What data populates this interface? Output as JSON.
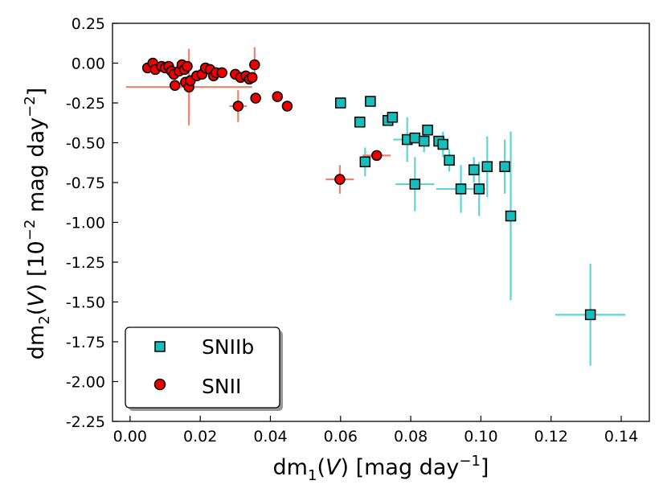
{
  "chart_data": {
    "type": "scatter",
    "title": "",
    "xlabel": {
      "pre": "dm",
      "sub": "1",
      "mid": "(",
      "var": "V",
      "post": ") [mag day",
      "sup": "−1",
      "end": "]"
    },
    "ylabel": {
      "pre": "dm",
      "sub": "2",
      "mid": "(",
      "var": "V",
      "post": ") [10",
      "sup1": "−2",
      "post2": " mag day",
      "sup2": "−2",
      "end": "]"
    },
    "xlim": [
      -0.005,
      0.148
    ],
    "ylim": [
      -2.25,
      0.25
    ],
    "xticks": [
      0.0,
      0.02,
      0.04,
      0.06,
      0.08,
      0.1,
      0.12,
      0.14
    ],
    "xtick_labels": [
      "0.00",
      "0.02",
      "0.04",
      "0.06",
      "0.08",
      "0.10",
      "0.12",
      "0.14"
    ],
    "yticks": [
      0.25,
      0.0,
      -0.25,
      -0.5,
      -0.75,
      -1.0,
      -1.25,
      -1.5,
      -1.75,
      -2.0,
      -2.25
    ],
    "ytick_labels": [
      "0.25",
      "0.00",
      "-0.25",
      "-0.50",
      "-0.75",
      "-1.00",
      "-1.25",
      "-1.50",
      "-1.75",
      "-2.00",
      "-2.25"
    ],
    "legend_position": "bottom-left",
    "series": [
      {
        "name": "SNIIb",
        "marker": "square",
        "color": "#17bebb",
        "error_color": "#5dd5d5",
        "points": [
          {
            "x": 0.06,
            "y": -0.25,
            "xerr": 0.0,
            "yerr": 0.0
          },
          {
            "x": 0.0655,
            "y": -0.37,
            "xerr": 0.0,
            "yerr": 0.0
          },
          {
            "x": 0.0685,
            "y": -0.24,
            "xerr": 0.0,
            "yerr": 0.0
          },
          {
            "x": 0.0735,
            "y": -0.36,
            "xerr": 0.0,
            "yerr": 0.0
          },
          {
            "x": 0.0748,
            "y": -0.34,
            "xerr": 0.0,
            "yerr": 0.0
          },
          {
            "x": 0.067,
            "y": -0.62,
            "xerr": 0.0,
            "yerr": 0.09
          },
          {
            "x": 0.079,
            "y": -0.48,
            "xerr": 0.004,
            "yerr": 0.14
          },
          {
            "x": 0.0812,
            "y": -0.47,
            "xerr": 0.0,
            "yerr": 0.0
          },
          {
            "x": 0.0838,
            "y": -0.49,
            "xerr": 0.0,
            "yerr": 0.07
          },
          {
            "x": 0.0848,
            "y": -0.42,
            "xerr": 0.0,
            "yerr": 0.0
          },
          {
            "x": 0.088,
            "y": -0.49,
            "xerr": 0.0,
            "yerr": 0.0
          },
          {
            "x": 0.0892,
            "y": -0.51,
            "xerr": 0.0,
            "yerr": 0.08
          },
          {
            "x": 0.0812,
            "y": -0.76,
            "xerr": 0.0055,
            "yerr": 0.17
          },
          {
            "x": 0.091,
            "y": -0.61,
            "xerr": 0.0,
            "yerr": 0.07
          },
          {
            "x": 0.0943,
            "y": -0.79,
            "xerr": 0.007,
            "yerr": 0.15
          },
          {
            "x": 0.098,
            "y": -0.67,
            "xerr": 0.0,
            "yerr": 0.08
          },
          {
            "x": 0.0995,
            "y": -0.79,
            "xerr": 0.0,
            "yerr": 0.17
          },
          {
            "x": 0.1018,
            "y": -0.65,
            "xerr": 0.0,
            "yerr": 0.19
          },
          {
            "x": 0.1068,
            "y": -0.65,
            "xerr": 0.0,
            "yerr": 0.17
          },
          {
            "x": 0.1085,
            "y": -0.96,
            "xerr": 0.0,
            "yerr": 0.53
          },
          {
            "x": 0.1312,
            "y": -1.58,
            "xerr": 0.01,
            "yerr": 0.32
          }
        ]
      },
      {
        "name": "SNII",
        "marker": "circle",
        "color": "#ee0000",
        "error_color": "#f08070",
        "points": [
          {
            "x": 0.005,
            "y": -0.03,
            "xerr": 0.0,
            "yerr": 0.0
          },
          {
            "x": 0.0065,
            "y": 0.0,
            "xerr": 0.0,
            "yerr": 0.0
          },
          {
            "x": 0.0072,
            "y": -0.04,
            "xerr": 0.0,
            "yerr": 0.0
          },
          {
            "x": 0.009,
            "y": -0.02,
            "xerr": 0.0,
            "yerr": 0.0
          },
          {
            "x": 0.01,
            "y": -0.03,
            "xerr": 0.0,
            "yerr": 0.0
          },
          {
            "x": 0.011,
            "y": -0.02,
            "xerr": 0.0,
            "yerr": 0.0
          },
          {
            "x": 0.0118,
            "y": -0.05,
            "xerr": 0.0,
            "yerr": 0.0
          },
          {
            "x": 0.0125,
            "y": -0.07,
            "xerr": 0.0,
            "yerr": 0.0
          },
          {
            "x": 0.0128,
            "y": -0.14,
            "xerr": 0.0,
            "yerr": 0.0
          },
          {
            "x": 0.014,
            "y": -0.05,
            "xerr": 0.0,
            "yerr": 0.0
          },
          {
            "x": 0.0148,
            "y": -0.01,
            "xerr": 0.0,
            "yerr": 0.0
          },
          {
            "x": 0.0155,
            "y": -0.04,
            "xerr": 0.0,
            "yerr": 0.0
          },
          {
            "x": 0.0158,
            "y": -0.12,
            "xerr": 0.0,
            "yerr": 0.0
          },
          {
            "x": 0.0163,
            "y": -0.02,
            "xerr": 0.0,
            "yerr": 0.0
          },
          {
            "x": 0.0168,
            "y": -0.15,
            "xerr": 0.018,
            "yerr": 0.24
          },
          {
            "x": 0.0172,
            "y": -0.11,
            "xerr": 0.0,
            "yerr": 0.0
          },
          {
            "x": 0.019,
            "y": -0.08,
            "xerr": 0.0,
            "yerr": 0.0
          },
          {
            "x": 0.0205,
            "y": -0.07,
            "xerr": 0.0,
            "yerr": 0.0
          },
          {
            "x": 0.0215,
            "y": -0.03,
            "xerr": 0.0,
            "yerr": 0.0
          },
          {
            "x": 0.0228,
            "y": -0.04,
            "xerr": 0.0,
            "yerr": 0.0
          },
          {
            "x": 0.0238,
            "y": -0.08,
            "xerr": 0.0,
            "yerr": 0.0
          },
          {
            "x": 0.0245,
            "y": -0.06,
            "xerr": 0.0,
            "yerr": 0.0
          },
          {
            "x": 0.0262,
            "y": -0.06,
            "xerr": 0.0,
            "yerr": 0.0
          },
          {
            "x": 0.03,
            "y": -0.07,
            "xerr": 0.0,
            "yerr": 0.0
          },
          {
            "x": 0.0308,
            "y": -0.27,
            "xerr": 0.0025,
            "yerr": 0.1
          },
          {
            "x": 0.0315,
            "y": -0.09,
            "xerr": 0.0,
            "yerr": 0.0
          },
          {
            "x": 0.033,
            "y": -0.08,
            "xerr": 0.0,
            "yerr": 0.0
          },
          {
            "x": 0.034,
            "y": -0.1,
            "xerr": 0.0,
            "yerr": 0.0
          },
          {
            "x": 0.0348,
            "y": -0.09,
            "xerr": 0.0,
            "yerr": 0.0
          },
          {
            "x": 0.0355,
            "y": -0.01,
            "xerr": 0.0,
            "yerr": 0.11
          },
          {
            "x": 0.0358,
            "y": -0.22,
            "xerr": 0.0,
            "yerr": 0.0
          },
          {
            "x": 0.042,
            "y": -0.21,
            "xerr": 0.0,
            "yerr": 0.0
          },
          {
            "x": 0.0448,
            "y": -0.27,
            "xerr": 0.0,
            "yerr": 0.0
          },
          {
            "x": 0.0598,
            "y": -0.73,
            "xerr": 0.004,
            "yerr": 0.09
          },
          {
            "x": 0.0703,
            "y": -0.58,
            "xerr": 0.004,
            "yerr": 0.0
          }
        ]
      }
    ]
  }
}
